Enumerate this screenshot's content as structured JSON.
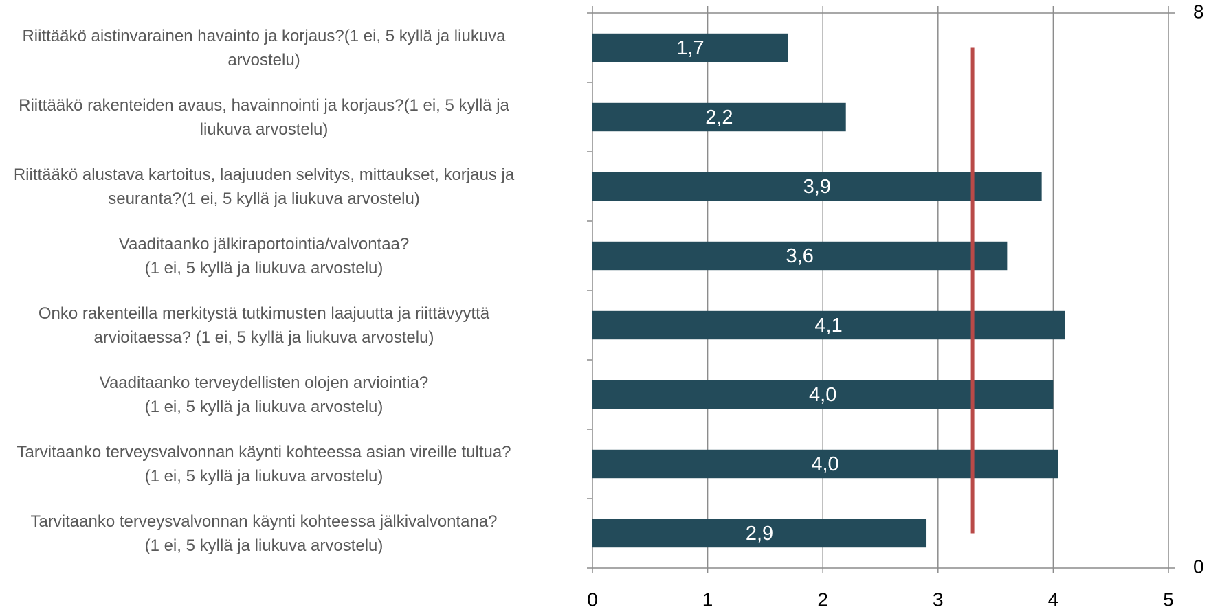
{
  "chart_data": {
    "type": "bar",
    "orientation": "horizontal",
    "categories": [
      "Riittääkö aistinvarainen havainto ja korjaus?(1 ei, 5 kyllä ja liukuva\narvostelu)",
      "Riittääkö rakenteiden avaus, havainnointi ja korjaus?(1 ei, 5 kyllä ja\nliukuva arvostelu)",
      "Riittääkö alustava kartoitus, laajuuden selvitys, mittaukset, korjaus ja\nseuranta?(1 ei, 5 kyllä ja liukuva arvostelu)",
      "Vaaditaanko jälkiraportointia/valvontaa?\n(1 ei, 5 kyllä ja liukuva arvostelu)",
      "Onko rakenteilla merkitystä tutkimusten laajuutta ja riittävyyttä\narvioitaessa?            (1 ei, 5 kyllä ja liukuva arvostelu)",
      "Vaaditaanko terveydellisten olojen arviointia?\n(1 ei, 5 kyllä ja liukuva arvostelu)",
      "Tarvitaanko terveysvalvonnan käynti kohteessa asian vireille tultua?\n(1 ei, 5 kyllä ja liukuva arvostelu)",
      "Tarvitaanko terveysvalvonnan käynti kohteessa jälkivalvontana?\n(1 ei, 5 kyllä ja liukuva arvostelu)"
    ],
    "series": [
      {
        "color": "#234b5a",
        "values": [
          1.7,
          2.2,
          3.9,
          3.6,
          4.1,
          4.0,
          4.04,
          2.9
        ],
        "value_labels": [
          "1,7",
          "2,2",
          "3,9",
          "3,6",
          "4,1",
          "4,0",
          "4,0",
          "2,9"
        ]
      },
      {
        "type": "line",
        "axis": "y2",
        "color": "#b94a48",
        "x": [
          3.3,
          3.3
        ],
        "values": [
          0.5,
          7.5
        ]
      }
    ],
    "xlim": [
      0,
      5
    ],
    "xticks": [
      0,
      1,
      2,
      3,
      4,
      5
    ],
    "y2lim": [
      0,
      8
    ],
    "y2ticks": [
      0,
      8
    ],
    "grid": true
  }
}
